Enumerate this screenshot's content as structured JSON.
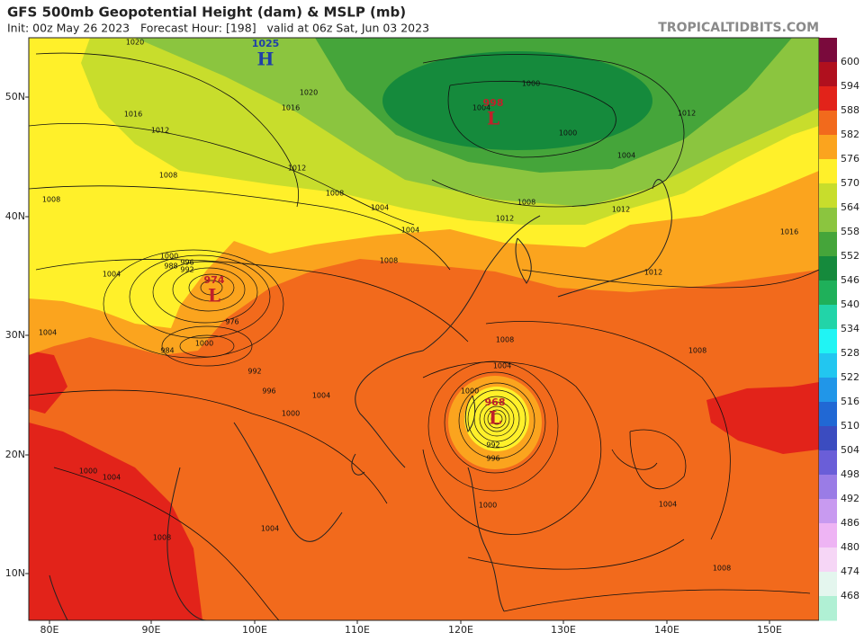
{
  "header": {
    "title": "GFS 500mb Geopotential Height (dam) & MSLP (mb)",
    "init": "Init: 00z May 26 2023   Forecast Hour: [198]   valid at 06z Sat, Jun 03 2023",
    "source": "TROPICALTIDBITS.COM"
  },
  "axes": {
    "lat_labels": [
      "50N",
      "40N",
      "30N",
      "20N",
      "10N"
    ],
    "lon_labels": [
      "80E",
      "90E",
      "100E",
      "110E",
      "120E",
      "130E",
      "140E",
      "150E"
    ]
  },
  "colorbar": {
    "labels": [
      "600",
      "594",
      "588",
      "582",
      "576",
      "570",
      "564",
      "558",
      "552",
      "546",
      "540",
      "534",
      "528",
      "522",
      "516",
      "510",
      "504",
      "498",
      "492",
      "486",
      "480",
      "474",
      "468"
    ],
    "colors": [
      "#7a0a3c",
      "#b0101e",
      "#e2231a",
      "#f26a1c",
      "#fba41e",
      "#fff02a",
      "#c8dd2c",
      "#8bc53f",
      "#45a53a",
      "#158a3c",
      "#1fb05a",
      "#22d4a8",
      "#20f4f4",
      "#22c6f0",
      "#2196e8",
      "#2168d4",
      "#3b4cc0",
      "#6a5ed8",
      "#9a7ce6",
      "#c89af0",
      "#eeb4f4",
      "#f6d6f6",
      "#e4f6ee",
      "#b0f0d4"
    ]
  },
  "centers": [
    {
      "value": "1025",
      "letter": "H",
      "color": "#1f3fa8"
    },
    {
      "value": "998",
      "letter": "L",
      "color": "#c0202a"
    },
    {
      "value": "974",
      "letter": "L",
      "color": "#c0202a"
    },
    {
      "value": "968",
      "letter": "L",
      "color": "#c0202a"
    }
  ],
  "contour_labels": [
    "1020",
    "1016",
    "1012",
    "1020",
    "1016",
    "1012",
    "1008",
    "1008",
    "1012",
    "1008",
    "1004",
    "1004",
    "1000",
    "1000",
    "1004",
    "1004",
    "1008",
    "1012",
    "1012",
    "1016",
    "1012",
    "1000",
    "996",
    "992",
    "988",
    "984",
    "976",
    "1000",
    "992",
    "996",
    "1004",
    "1000",
    "1008",
    "1004",
    "1008",
    "1004",
    "1000",
    "992",
    "996",
    "1000",
    "1004",
    "1004",
    "1008",
    "1008",
    "1004",
    "1000",
    "1004",
    "1008"
  ]
}
